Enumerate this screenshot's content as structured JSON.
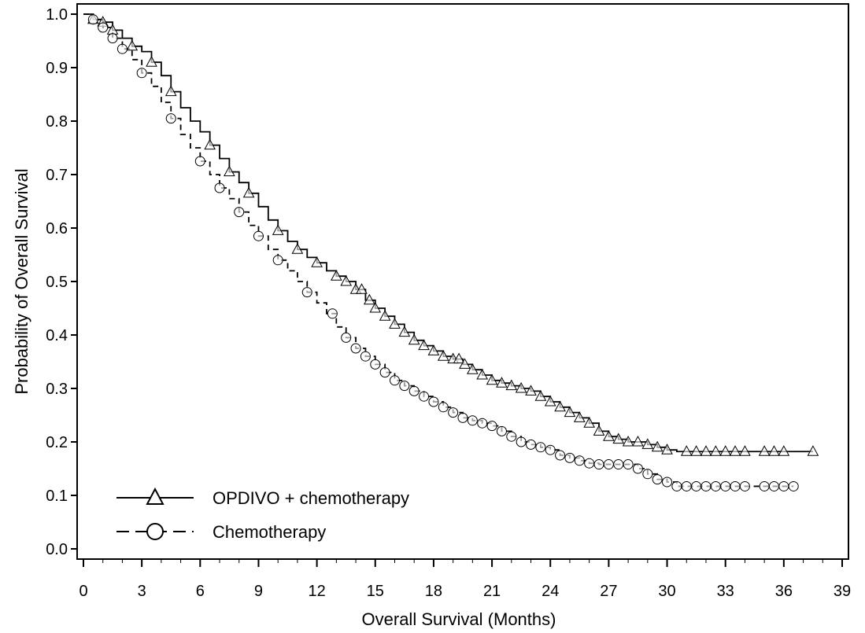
{
  "chart_data": {
    "type": "line",
    "title": "",
    "xlabel": "Overall Survival (Months)",
    "ylabel": "Probability of Overall Survival",
    "xlim": [
      0,
      39
    ],
    "ylim": [
      0.0,
      1.0
    ],
    "xticks": [
      "0",
      "3",
      "6",
      "9",
      "12",
      "15",
      "18",
      "21",
      "24",
      "27",
      "30",
      "33",
      "36",
      "39"
    ],
    "yticks": [
      "0.0",
      "0.1",
      "0.2",
      "0.3",
      "0.4",
      "0.5",
      "0.6",
      "0.7",
      "0.8",
      "0.9",
      "1.0"
    ],
    "grid": false,
    "legend_position": "bottom-left",
    "series": [
      {
        "name": "OPDIVO + chemotherapy",
        "line_style": "solid",
        "marker": "triangle",
        "color": "#000000",
        "x": [
          0,
          0.5,
          1.0,
          1.5,
          2.0,
          2.5,
          3.0,
          3.5,
          4.0,
          4.5,
          5.0,
          5.5,
          6.0,
          6.5,
          7.0,
          7.5,
          8.0,
          8.5,
          9.0,
          9.5,
          10.0,
          10.5,
          11.0,
          11.5,
          12.0,
          12.5,
          13.0,
          13.5,
          14.0,
          14.5,
          15.0,
          15.5,
          16.0,
          16.5,
          17.0,
          17.5,
          18.0,
          18.5,
          19.0,
          19.5,
          20.0,
          20.5,
          21.0,
          21.5,
          22.0,
          22.5,
          23.0,
          23.5,
          24.0,
          24.5,
          25.0,
          25.5,
          26.0,
          26.5,
          27.0,
          27.5,
          28.0,
          28.5,
          29.0,
          29.5,
          30.0,
          30.5,
          37.5
        ],
        "y": [
          1.0,
          0.99,
          0.985,
          0.97,
          0.955,
          0.94,
          0.93,
          0.91,
          0.885,
          0.855,
          0.825,
          0.8,
          0.78,
          0.755,
          0.73,
          0.705,
          0.685,
          0.665,
          0.64,
          0.615,
          0.595,
          0.575,
          0.56,
          0.545,
          0.535,
          0.52,
          0.51,
          0.5,
          0.485,
          0.465,
          0.45,
          0.435,
          0.42,
          0.405,
          0.39,
          0.38,
          0.37,
          0.36,
          0.355,
          0.345,
          0.335,
          0.325,
          0.315,
          0.31,
          0.305,
          0.3,
          0.295,
          0.285,
          0.275,
          0.265,
          0.255,
          0.245,
          0.235,
          0.22,
          0.21,
          0.205,
          0.2,
          0.2,
          0.195,
          0.19,
          0.185,
          0.182,
          0.182
        ],
        "censor_x": [
          0.5,
          1.0,
          1.5,
          2.5,
          3.5,
          4.5,
          6.5,
          7.5,
          8.5,
          10.0,
          11.0,
          12.0,
          13.0,
          13.5,
          14.0,
          14.3,
          14.7,
          15.0,
          15.5,
          16.0,
          16.5,
          17.0,
          17.5,
          18.0,
          18.5,
          19.0,
          19.3,
          19.6,
          20.0,
          20.5,
          21.0,
          21.5,
          22.0,
          22.5,
          23.0,
          23.5,
          24.0,
          24.5,
          25.0,
          25.5,
          26.0,
          26.5,
          27.0,
          27.5,
          28.0,
          28.5,
          29.0,
          29.5,
          30.0,
          31.0,
          31.5,
          32.0,
          32.5,
          33.0,
          33.5,
          34.0,
          35.0,
          35.5,
          36.0,
          37.5
        ]
      },
      {
        "name": "Chemotherapy",
        "line_style": "dashed",
        "marker": "circle",
        "color": "#000000",
        "x": [
          0,
          0.5,
          1.0,
          1.5,
          2.0,
          2.5,
          3.0,
          3.5,
          4.0,
          4.5,
          5.0,
          5.5,
          6.0,
          6.5,
          7.0,
          7.5,
          8.0,
          8.5,
          9.0,
          9.5,
          10.0,
          10.5,
          11.0,
          11.5,
          12.0,
          12.5,
          13.0,
          13.5,
          14.0,
          14.5,
          15.0,
          15.5,
          16.0,
          16.5,
          17.0,
          17.5,
          18.0,
          18.5,
          19.0,
          19.5,
          20.0,
          20.5,
          21.0,
          21.5,
          22.0,
          22.5,
          23.0,
          23.5,
          24.0,
          24.5,
          25.0,
          25.5,
          26.0,
          26.5,
          27.0,
          27.5,
          28.0,
          28.5,
          29.0,
          29.5,
          30.0,
          30.5,
          36.5
        ],
        "y": [
          1.0,
          0.99,
          0.975,
          0.955,
          0.935,
          0.915,
          0.89,
          0.865,
          0.835,
          0.805,
          0.775,
          0.75,
          0.725,
          0.7,
          0.675,
          0.655,
          0.63,
          0.605,
          0.585,
          0.56,
          0.54,
          0.52,
          0.5,
          0.48,
          0.46,
          0.44,
          0.415,
          0.395,
          0.375,
          0.36,
          0.345,
          0.33,
          0.315,
          0.305,
          0.295,
          0.285,
          0.275,
          0.265,
          0.255,
          0.245,
          0.24,
          0.235,
          0.23,
          0.22,
          0.21,
          0.2,
          0.195,
          0.19,
          0.185,
          0.175,
          0.17,
          0.165,
          0.16,
          0.158,
          0.158,
          0.158,
          0.158,
          0.15,
          0.14,
          0.13,
          0.125,
          0.117,
          0.117
        ],
        "censor_x": [
          0.5,
          1.0,
          1.5,
          2.0,
          3.0,
          4.5,
          6.0,
          7.0,
          8.0,
          9.0,
          10.0,
          11.5,
          12.8,
          13.5,
          14.0,
          14.5,
          15.0,
          15.5,
          16.0,
          16.5,
          17.0,
          17.5,
          18.0,
          18.5,
          19.0,
          19.5,
          20.0,
          20.5,
          21.0,
          21.5,
          22.0,
          22.5,
          23.0,
          23.5,
          24.0,
          24.5,
          25.0,
          25.5,
          26.0,
          26.5,
          27.0,
          27.5,
          28.0,
          28.5,
          29.0,
          29.5,
          30.0,
          30.5,
          31.0,
          31.5,
          32.0,
          32.5,
          33.0,
          33.5,
          34.0,
          35.0,
          35.5,
          36.0,
          36.5
        ]
      }
    ]
  }
}
